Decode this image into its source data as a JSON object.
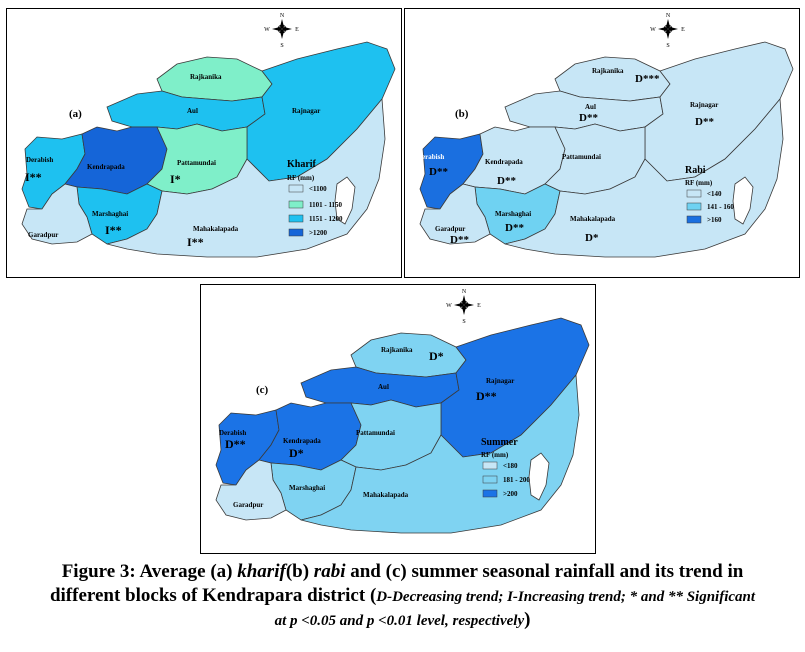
{
  "colors": {
    "c1": "#c7e6f6",
    "c2": "#7fefc9",
    "c3": "#1ec1f0",
    "c4": "#1565d8",
    "b1": "#c7e6f6",
    "b2": "#6fd2f2",
    "b3": "#1a6fe0",
    "s1": "#c7e6f6",
    "s2": "#7fd3f2",
    "s3": "#1b73e6",
    "outline": "#3a3a3a"
  },
  "compass": {
    "n": "N",
    "s": "S",
    "e": "E",
    "w": "W"
  },
  "panel_a": {
    "label": "(a)",
    "legend_title": "Kharif",
    "legend_unit": "RF (mm)",
    "legend_items": [
      "<1100",
      "1101 - 1150",
      "1151 - 1200",
      ">1200"
    ],
    "blocks": {
      "rajkanika": "Rajkanika",
      "aul": "Aul",
      "rajnagar": "Rajnagar",
      "derabish": "Derabish",
      "kendrapada": "Kendrapada",
      "pattamundai": "Pattamundai",
      "marshaghai": "Marshaghai",
      "garadpur": "Garadpur",
      "mahakalapada": "Mahakalapada"
    },
    "trends": {
      "derabish": "I**",
      "pattamundai": "I*",
      "marshaghai": "I**",
      "mahakalapada": "I**"
    }
  },
  "panel_b": {
    "label": "(b)",
    "legend_title": "Rabi",
    "legend_unit": "RF (mm)",
    "legend_items": [
      "<140",
      "141 - 160",
      ">160"
    ],
    "blocks": {
      "rajkanika": "Rajkanika",
      "aul": "Aul",
      "rajnagar": "Rajnagar",
      "derabish": "Derabish",
      "kendrapada": "Kendrapada",
      "pattamundai": "Pattamundai",
      "marshaghai": "Marshaghai",
      "garadpur": "Garadpur",
      "mahakalapada": "Mahakalapada"
    },
    "trends": {
      "rajkanika": "D***",
      "aul": "D**",
      "rajnagar": "D**",
      "derabish": "D**",
      "kendrapada": "D**",
      "marshaghai": "D**",
      "garadpur": "D**",
      "mahakalapada": "D*"
    }
  },
  "panel_c": {
    "label": "(c)",
    "legend_title": "Summer",
    "legend_unit": "RF (mm)",
    "legend_items": [
      "<180",
      "181 - 200",
      ">200"
    ],
    "blocks": {
      "rajkanika": "Rajkanika",
      "aul": "Aul",
      "rajnagar": "Rajnagar",
      "derabish": "Derabish",
      "kendrapada": "Kendrapada",
      "pattamundai": "Pattamundai",
      "marshaghai": "Marshaghai",
      "garadpur": "Garadpur",
      "mahakalapada": "Mahakalapada"
    },
    "trends": {
      "rajkanika": "D*",
      "rajnagar": "D**",
      "derabish": "D**",
      "kendrapada": "D*"
    }
  },
  "caption": {
    "line1_a": "Figure 3: Average (a) ",
    "line1_kharif": "kharif",
    "line1_b": "(b) ",
    "line1_rabi": "rabi",
    "line1_c": " and (c) summer seasonal rainfall and its trend in",
    "line2_a": "different blocks of Kendrapara district (",
    "line2_note": "D-Decreasing trend; I-Increasing trend; * and ** Significant",
    "line3_note": "at p <0.05 and p <0.01 level, respectively",
    "line3_end": ")"
  }
}
